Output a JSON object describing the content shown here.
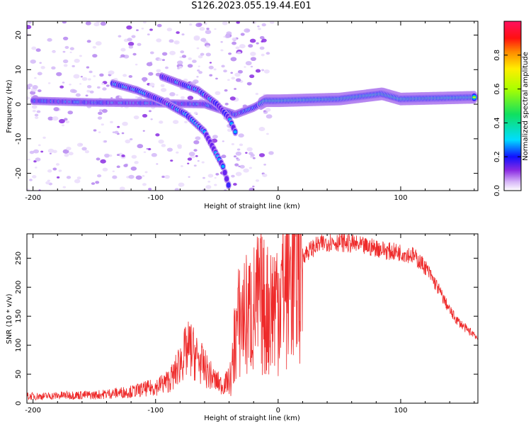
{
  "title": "S126.2023.055.19.44.E01",
  "chart_data": [
    {
      "type": "heatmap",
      "xlabel": "Height of straight line (km)",
      "ylabel": "Frequency (Hz)",
      "xlim": [
        -205,
        163
      ],
      "ylim": [
        -25,
        24
      ],
      "xticks": [
        -200,
        -100,
        0,
        100
      ],
      "yticks": [
        -20,
        -10,
        0,
        10,
        20
      ],
      "grid": false,
      "colorbar": {
        "label": "Normalized spectral amplitude",
        "range": [
          0,
          1
        ],
        "ticks": [
          0.0,
          0.2,
          0.4,
          0.6,
          0.8
        ]
      },
      "bands": [
        {
          "x": [
            -200,
            -150,
            -100,
            -60,
            -35,
            -20,
            -10,
            0,
            50,
            85,
            100,
            160
          ],
          "y": [
            1,
            0.5,
            0.3,
            0,
            -3,
            -1,
            1,
            1,
            1.5,
            3,
            1.5,
            2
          ]
        },
        {
          "x": [
            -135,
            -115,
            -95,
            -75,
            -60,
            -45,
            -40
          ],
          "y": [
            6,
            4,
            1,
            -3,
            -8,
            -18,
            -24
          ]
        },
        {
          "x": [
            -95,
            -80,
            -65,
            -50,
            -40,
            -35
          ],
          "y": [
            8,
            6,
            4,
            0,
            -4,
            -8
          ]
        }
      ]
    },
    {
      "type": "line",
      "xlabel": "Height of straight line (km)",
      "ylabel": "SNR (10 * v/v)",
      "xlim": [
        -205,
        163
      ],
      "ylim": [
        0,
        292
      ],
      "xticks": [
        -200,
        -100,
        0,
        100
      ],
      "yticks": [
        0,
        50,
        100,
        150,
        200,
        250
      ],
      "grid": false,
      "color": "#ee2a2a",
      "x": [
        -205,
        -190,
        -170,
        -150,
        -140,
        -120,
        -100,
        -90,
        -85,
        -78,
        -72,
        -65,
        -58,
        -52,
        -45,
        -38,
        -35,
        -30,
        -25,
        -20,
        -15,
        -10,
        -5,
        0,
        10,
        20,
        30,
        40,
        50,
        60,
        70,
        80,
        90,
        100,
        110,
        115,
        120,
        125,
        130,
        135,
        140,
        145,
        150,
        155,
        160,
        163
      ],
      "y": [
        12,
        12,
        14,
        14,
        16,
        20,
        28,
        38,
        48,
        80,
        95,
        75,
        55,
        40,
        30,
        45,
        120,
        150,
        150,
        160,
        175,
        160,
        170,
        185,
        220,
        255,
        270,
        278,
        278,
        275,
        270,
        268,
        262,
        260,
        255,
        245,
        235,
        218,
        200,
        180,
        160,
        145,
        135,
        125,
        120,
        110
      ]
    }
  ]
}
